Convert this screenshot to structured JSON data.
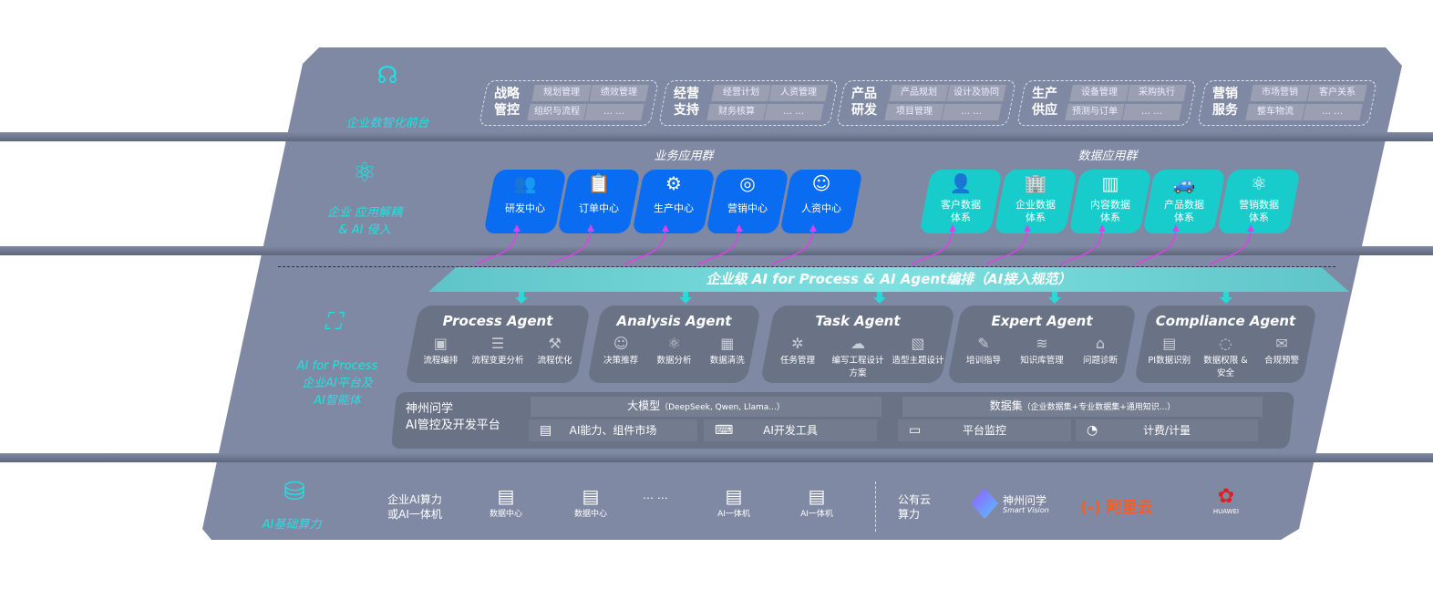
{
  "colors": {
    "panel": "#8089a3",
    "business_tile": "#0a6cf0",
    "data_tile": "#18cccc",
    "accent_cyan": "#22e0e0",
    "arrow": "#e040e8",
    "card": "#6a7285",
    "aliyun": "#ff5a1f",
    "huawei": "#e02020"
  },
  "layers": {
    "frontend": {
      "label": "企业数智化前台",
      "icon": "brain-icon",
      "groups": [
        {
          "title": "战略管控",
          "items": [
            "规划管理",
            "绩效管理",
            "组织与流程",
            "… …"
          ]
        },
        {
          "title": "经营支持",
          "items": [
            "经营计划",
            "人资管理",
            "财务核算",
            "… …"
          ]
        },
        {
          "title": "产品研发",
          "items": [
            "产品规划",
            "设计及协同",
            "项目管理",
            "… …"
          ]
        },
        {
          "title": "生产供应",
          "items": [
            "设备管理",
            "采购执行",
            "预测与订单",
            "… …"
          ]
        },
        {
          "title": "营销服务",
          "items": [
            "市场营销",
            "客户关系",
            "整车物流",
            "… …"
          ]
        }
      ]
    },
    "apps": {
      "label": "企业 应用解耦\n& AI 侵入",
      "icon": "molecule-icon",
      "business_title": "业务应用群",
      "data_title": "数据应用群",
      "business": [
        {
          "label": "研发中心",
          "icon": "users-icon"
        },
        {
          "label": "订单中心",
          "icon": "clipboard-icon"
        },
        {
          "label": "生产中心",
          "icon": "factory-icon"
        },
        {
          "label": "营销中心",
          "icon": "target-icon"
        },
        {
          "label": "人资中心",
          "icon": "person-icon"
        }
      ],
      "data": [
        {
          "label": "客户数据\n体系",
          "icon": "user-icon"
        },
        {
          "label": "企业数据\n体系",
          "icon": "building-icon"
        },
        {
          "label": "内容数据\n体系",
          "icon": "books-icon"
        },
        {
          "label": "产品数据\n体系",
          "icon": "car-icon"
        },
        {
          "label": "营销数据\n体系",
          "icon": "atom-icon"
        }
      ]
    },
    "ai": {
      "label": "AI for Process\n企业AI平台及\nAI智能体",
      "icon": "face-scan-icon",
      "banner": "企业级 AI for Process & AI Agent编排（AI接入规范）",
      "agents": [
        {
          "title": "Process Agent",
          "items": [
            "流程编排",
            "流程变更分析",
            "流程优化"
          ]
        },
        {
          "title": "Analysis Agent",
          "items": [
            "决策推荐",
            "数据分析",
            "数据清洗"
          ]
        },
        {
          "title": "Task Agent",
          "items": [
            "任务管理",
            "编写工程设计方案",
            "造型主题设计"
          ]
        },
        {
          "title": "Expert Agent",
          "items": [
            "培训指导",
            "知识库管理",
            "问题诊断"
          ]
        },
        {
          "title": "Compliance Agent",
          "items": [
            "PI数据识别",
            "数据权限 &\n安全",
            "合规预警"
          ]
        }
      ],
      "platform": {
        "title": "神州问学\nAI管控及开发平台",
        "model_title": "大模型",
        "model_note": "（DeepSeek, Qwen, Llama...）",
        "dataset_title": "数据集",
        "dataset_note": "（企业数据集+专业数据集+通用知识...）",
        "items": [
          {
            "label": "AI能力、组件市场",
            "icon": "market-icon"
          },
          {
            "label": "AI开发工具",
            "icon": "dev-tool-icon"
          },
          {
            "label": "平台监控",
            "icon": "monitor-icon"
          },
          {
            "label": "计费/计量",
            "icon": "gauge-icon"
          }
        ]
      }
    },
    "compute": {
      "label": "AI基础算力",
      "icon": "database-icon",
      "enterprise_label": "企业AI算力\n或AI一体机",
      "servers": [
        "数据中心",
        "数据中心",
        "AI一体机",
        "AI一体机"
      ],
      "ellipsis": "… …",
      "cloud_label": "公有云\n算力",
      "vendors": [
        {
          "name": "神州问学",
          "sub": "Smart Vision"
        },
        {
          "name": "阿里云"
        },
        {
          "name": "HUAWEI"
        }
      ]
    }
  }
}
